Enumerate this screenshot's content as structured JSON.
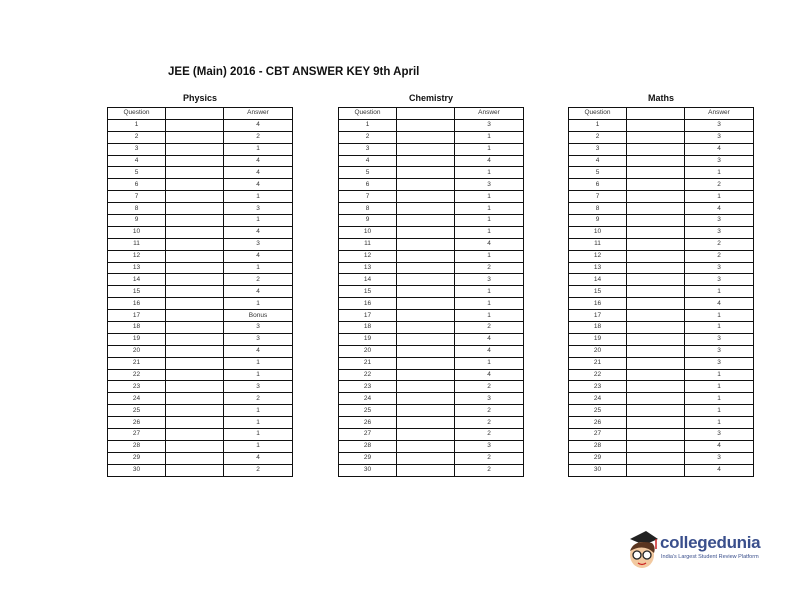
{
  "title": "JEE (Main) 2016 - CBT ANSWER KEY 9th April",
  "headers": {
    "question": "Question",
    "answer": "Answer"
  },
  "sections": [
    {
      "name": "Physics",
      "answers": [
        "4",
        "2",
        "1",
        "4",
        "4",
        "4",
        "1",
        "3",
        "1",
        "4",
        "3",
        "4",
        "1",
        "2",
        "4",
        "1",
        "Bonus",
        "3",
        "3",
        "4",
        "1",
        "1",
        "3",
        "2",
        "1",
        "1",
        "1",
        "1",
        "4",
        "2"
      ]
    },
    {
      "name": "Chemistry",
      "answers": [
        "3",
        "1",
        "1",
        "4",
        "1",
        "3",
        "1",
        "1",
        "1",
        "1",
        "4",
        "1",
        "2",
        "3",
        "1",
        "1",
        "1",
        "2",
        "4",
        "4",
        "1",
        "4",
        "2",
        "3",
        "2",
        "2",
        "2",
        "3",
        "2",
        "2"
      ]
    },
    {
      "name": "Maths",
      "answers": [
        "3",
        "3",
        "4",
        "3",
        "1",
        "2",
        "1",
        "4",
        "3",
        "3",
        "2",
        "2",
        "3",
        "3",
        "1",
        "4",
        "1",
        "1",
        "3",
        "3",
        "3",
        "1",
        "1",
        "1",
        "1",
        "1",
        "3",
        "4",
        "3",
        "4"
      ]
    }
  ],
  "logo": {
    "brand": "collegedunia",
    "tagline": "India's Largest Student Review Platform"
  }
}
